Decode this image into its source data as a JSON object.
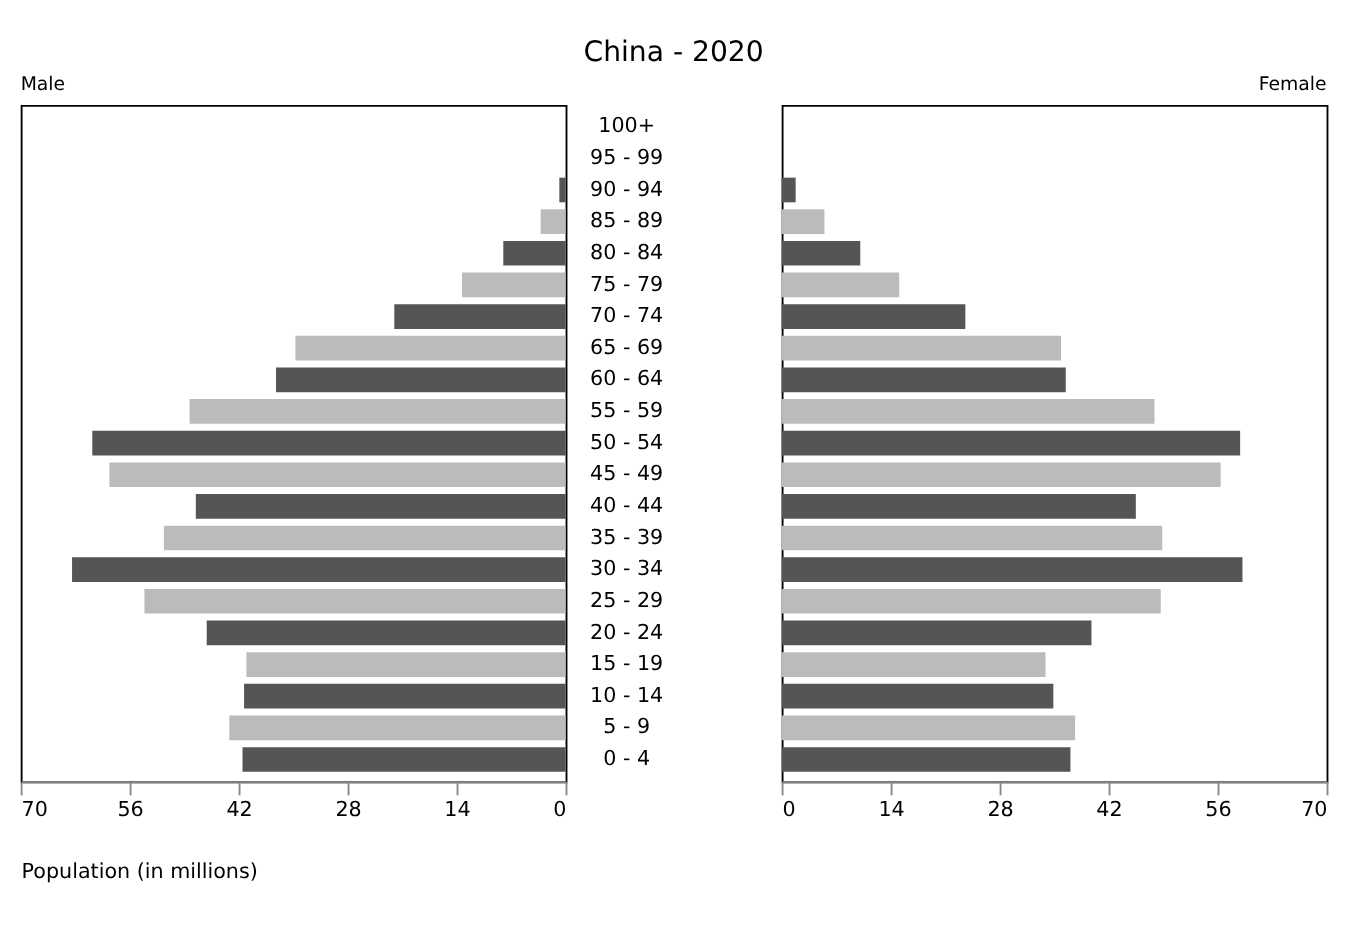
{
  "chart_data": [
    {
      "type": "bar",
      "orientation": "horizontal",
      "title": "China - 2020",
      "xlabel": "Population (in millions)",
      "categories": [
        "100+",
        "95 - 99",
        "90 - 94",
        "85 - 89",
        "80 - 84",
        "75 - 79",
        "70 - 74",
        "65 - 69",
        "60 - 64",
        "55 - 59",
        "50 - 54",
        "45 - 49",
        "40 - 44",
        "35 - 39",
        "30 - 34",
        "25 - 29",
        "20 - 24",
        "15 - 19",
        "10 - 14",
        "5 - 9",
        "0 - 4"
      ],
      "series": [
        {
          "name": "Male",
          "values": [
            0,
            0,
            0.8,
            3.2,
            8.0,
            13.3,
            22.0,
            34.7,
            37.2,
            48.3,
            60.8,
            58.6,
            47.5,
            51.6,
            63.4,
            54.1,
            46.1,
            41.0,
            41.3,
            43.2,
            41.5
          ],
          "colors": [
            "#555555",
            "#bbbbbb",
            "#555555",
            "#bbbbbb",
            "#555555",
            "#bbbbbb",
            "#555555",
            "#bbbbbb",
            "#555555",
            "#bbbbbb",
            "#555555",
            "#bbbbbb",
            "#555555",
            "#bbbbbb",
            "#555555",
            "#bbbbbb",
            "#555555",
            "#bbbbbb",
            "#555555",
            "#bbbbbb",
            "#555555"
          ]
        }
      ],
      "xlim": [
        70,
        0
      ],
      "xticks": [
        70,
        56,
        42,
        28,
        14,
        0
      ]
    },
    {
      "type": "bar",
      "orientation": "horizontal",
      "series": [
        {
          "name": "Female",
          "values": [
            0,
            0,
            1.8,
            5.5,
            10.1,
            15.1,
            23.6,
            35.9,
            36.5,
            47.9,
            58.9,
            56.4,
            45.5,
            48.9,
            59.2,
            48.7,
            39.8,
            33.9,
            34.9,
            37.7,
            37.1
          ],
          "colors": [
            "#555555",
            "#bbbbbb",
            "#555555",
            "#bbbbbb",
            "#555555",
            "#bbbbbb",
            "#555555",
            "#bbbbbb",
            "#555555",
            "#bbbbbb",
            "#555555",
            "#bbbbbb",
            "#555555",
            "#bbbbbb",
            "#555555",
            "#bbbbbb",
            "#555555",
            "#bbbbbb",
            "#555555",
            "#bbbbbb",
            "#555555"
          ]
        }
      ],
      "xlim": [
        0,
        70
      ],
      "xticks": [
        0,
        14,
        28,
        42,
        56,
        70
      ],
      "tick_labels": "x"
    }
  ]
}
